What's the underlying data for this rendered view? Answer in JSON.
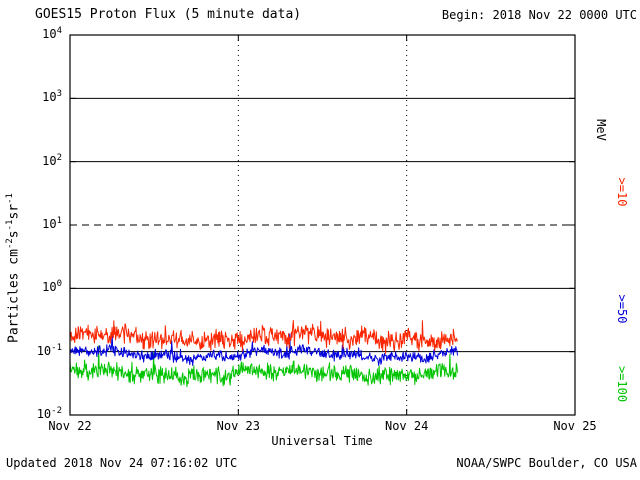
{
  "header": {
    "title": "GOES15 Proton Flux (5 minute data)",
    "begin_label": "Begin: 2018 Nov 22 0000 UTC"
  },
  "footer": {
    "updated": "Updated 2018 Nov 24 07:16:02 UTC",
    "source": "NOAA/SWPC Boulder, CO USA"
  },
  "colors": {
    "frame": "#000000",
    "background": "#ffffff",
    "red_series": "#fb2500",
    "blue_series": "#0000dd",
    "green_series": "#00c400"
  },
  "chart_data": {
    "type": "line",
    "title": "GOES15 Proton Flux (5 minute data)",
    "xlabel": "Universal Time",
    "ylabel_segments": [
      {
        "text": "Particles  cm"
      },
      {
        "sup": "-2"
      },
      {
        "text": "s"
      },
      {
        "sup": "-1"
      },
      {
        "text": "sr"
      },
      {
        "sup": "-1"
      }
    ],
    "x_ticks": [
      "Nov 22",
      "Nov 23",
      "Nov 24",
      "Nov 25"
    ],
    "x_range_days": [
      0,
      3
    ],
    "y_tick_exponents": [
      4,
      3,
      2,
      1,
      0,
      -1,
      -2
    ],
    "y_range_log": [
      -2,
      4
    ],
    "y_scale": "log10",
    "grid": {
      "solid_decades": [
        3,
        2,
        0,
        -1
      ],
      "dashed_decades": [
        1
      ],
      "vertical_dotted_days": [
        1,
        2
      ]
    },
    "right_axis_labels": [
      {
        "text": "MeV",
        "color": "#000000"
      },
      {
        "text": ">=10",
        "color": "#fb2500"
      },
      {
        "text": ">=50",
        "color": "#0000dd"
      },
      {
        "text": ">=100",
        "color": "#00c400"
      }
    ],
    "data_begin": "2018 Nov 22 0000 UTC",
    "data_end_day": 2.302,
    "cadence_minutes": 5,
    "series": [
      {
        "name": ">=10 MeV",
        "color": "#fb2500",
        "log10_mean": -0.78,
        "log10_spread": 0.2,
        "approx_flux_range": [
          0.08,
          0.45
        ],
        "seed": 101
      },
      {
        "name": ">=50 MeV",
        "color": "#0000dd",
        "log10_mean": -1.04,
        "log10_spread": 0.11,
        "approx_flux_range": [
          0.06,
          0.2
        ],
        "seed": 202
      },
      {
        "name": ">=100 MeV",
        "color": "#00c400",
        "log10_mean": -1.34,
        "log10_spread": 0.17,
        "approx_flux_range": [
          0.025,
          0.1
        ],
        "seed": 303
      }
    ]
  }
}
